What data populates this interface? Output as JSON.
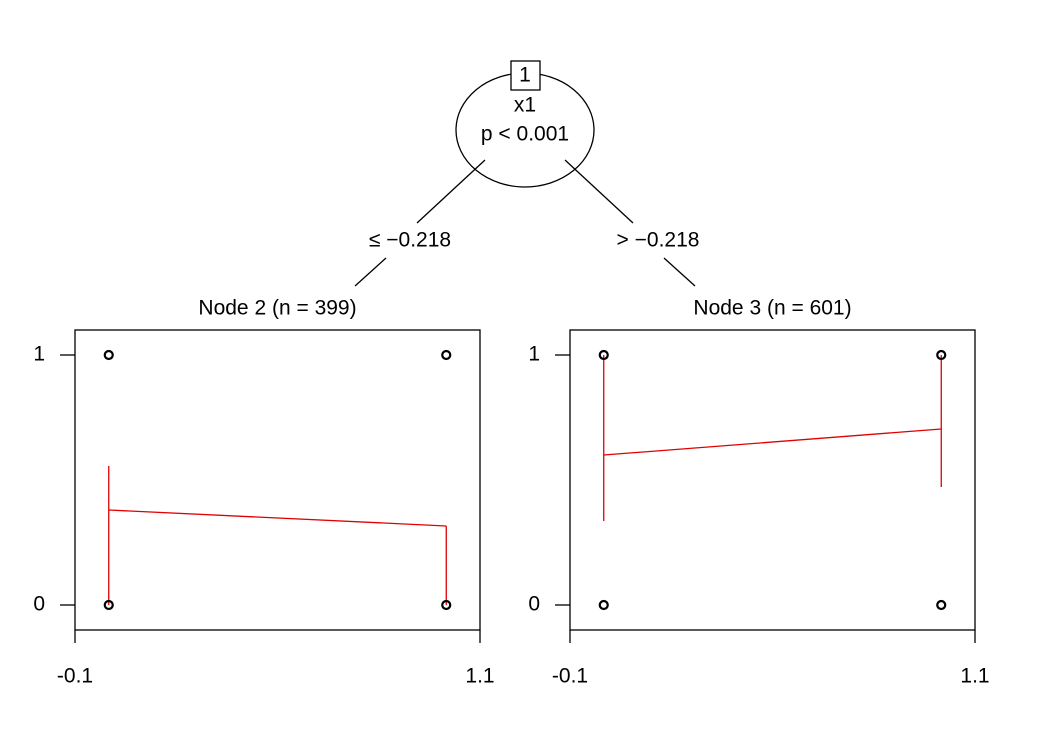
{
  "tree": {
    "root": {
      "id": "1",
      "variable": "x1",
      "p": "p < 0.001"
    },
    "edges": [
      "≤ −0.218",
      "> −0.218"
    ]
  },
  "chart_data": [
    {
      "type": "scatter",
      "title": "Node 2 (n = 399)",
      "xlim": [
        -0.1,
        1.1
      ],
      "xticks": [
        -0.1,
        1.1
      ],
      "ylim": [
        -0.1,
        1.1
      ],
      "yticks": [
        0,
        1
      ],
      "points": {
        "x": [
          0,
          0,
          1,
          1
        ],
        "y": [
          0,
          1,
          0,
          1
        ],
        "color": "#000000"
      },
      "fit": {
        "x": [
          0,
          1
        ],
        "values": [
          0.38,
          0.316
        ],
        "lower": [
          0,
          0
        ],
        "upper": [
          0.556,
          0.316
        ],
        "color": "#e00000"
      }
    },
    {
      "type": "scatter",
      "title": "Node 3 (n = 601)",
      "xlim": [
        -0.1,
        1.1
      ],
      "xticks": [
        -0.1,
        1.1
      ],
      "ylim": [
        -0.1,
        1.1
      ],
      "yticks": [
        0,
        1
      ],
      "points": {
        "x": [
          0,
          0,
          1,
          1
        ],
        "y": [
          0,
          1,
          0,
          1
        ],
        "color": "#000000"
      },
      "fit": {
        "x": [
          0,
          1
        ],
        "values": [
          0.6,
          0.704
        ],
        "lower": [
          0.336,
          0.472
        ],
        "upper": [
          1,
          1
        ],
        "color": "#e00000"
      }
    }
  ]
}
